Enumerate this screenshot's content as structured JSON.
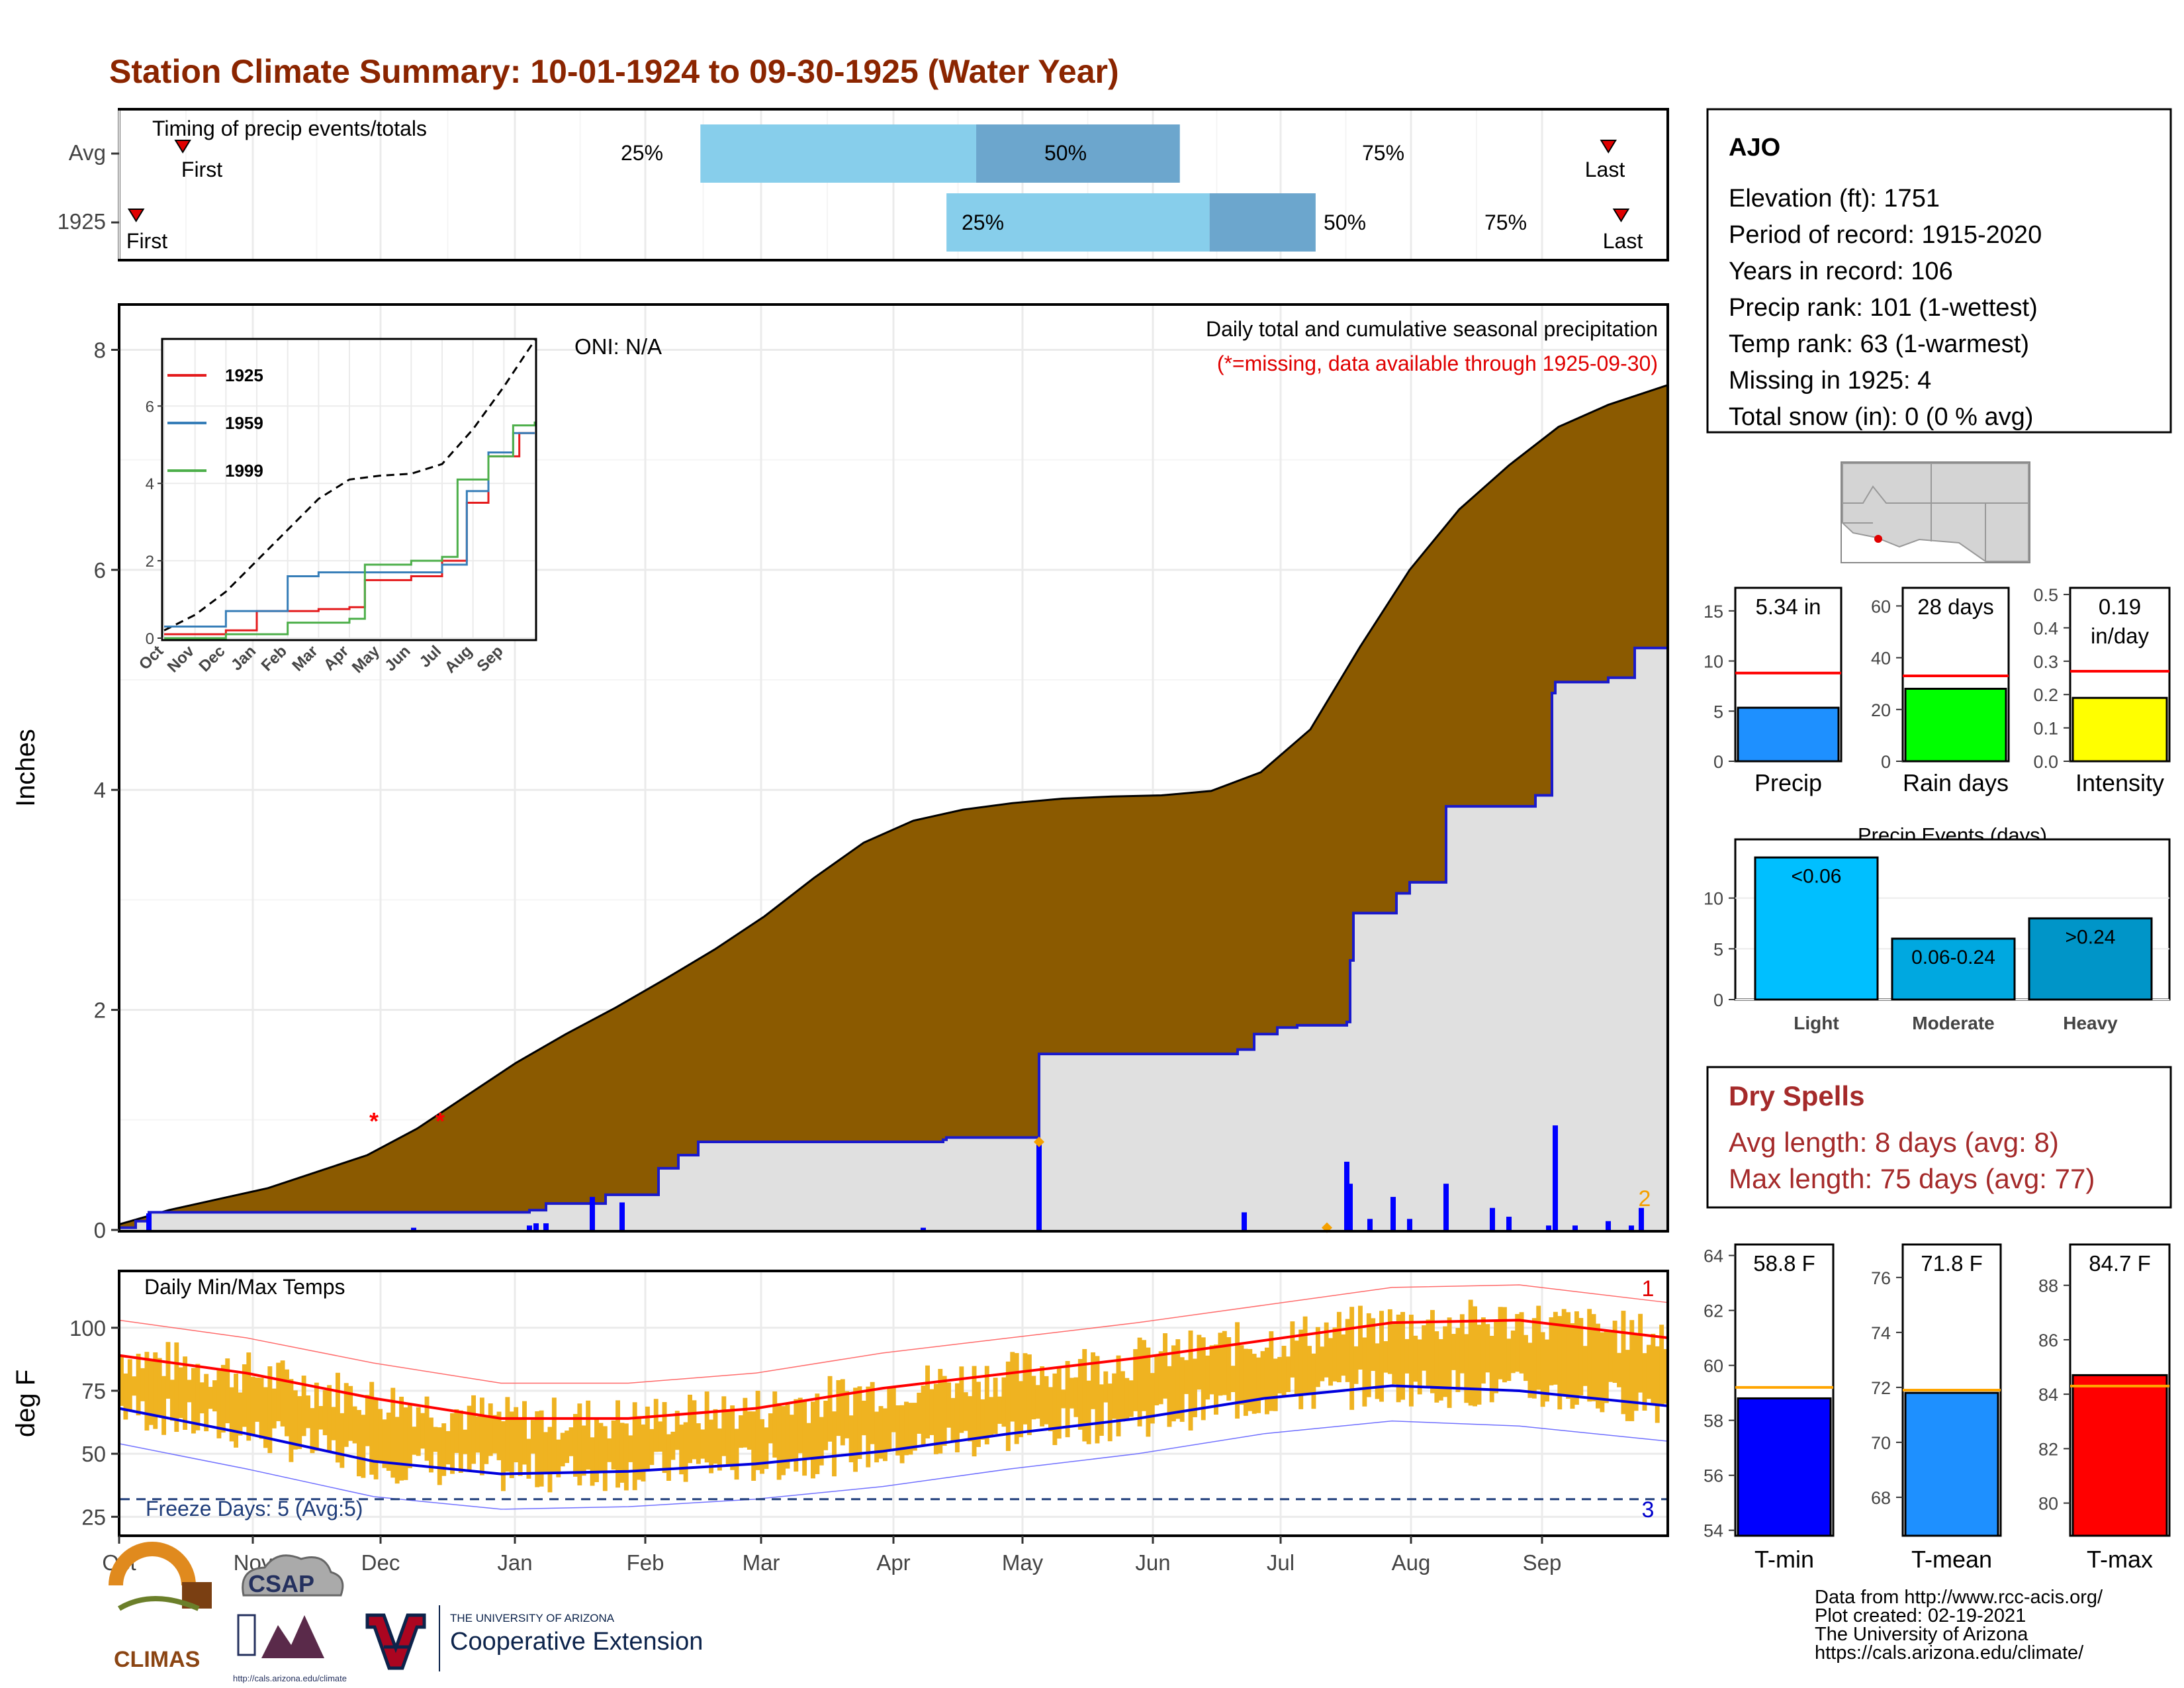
{
  "title": "Station Climate Summary: 10-01-1924 to 09-30-1925 (Water Year)",
  "station": {
    "name": "AJO",
    "lines": [
      "Elevation (ft): 1751",
      "Period of record: 1915-2020",
      "Years in record: 106",
      "Precip rank: 101 (1-wettest)",
      "Temp rank: 63 (1-warmest)",
      "Missing in 1925: 4",
      "Total snow (in): 0 (0 % avg)"
    ]
  },
  "timing": {
    "label": "Timing of precip events/totals",
    "rows": [
      {
        "name": "Avg",
        "first_label": "First",
        "last_label": "Last",
        "p25": "25%",
        "p50": "50%",
        "p75": "75%"
      },
      {
        "name": "1925",
        "first_label": "First",
        "last_label": "Last",
        "p25": "25%",
        "p50": "50%",
        "p75": "75%"
      }
    ]
  },
  "months": [
    "Oct",
    "Nov",
    "Dec",
    "Jan",
    "Feb",
    "Mar",
    "Apr",
    "May",
    "Jun",
    "Jul",
    "Aug",
    "Sep"
  ],
  "precip_panel": {
    "ylabel": "Inches",
    "yticks": [
      "0",
      "2",
      "4",
      "6",
      "8"
    ],
    "title": "Daily total and cumulative seasonal precipitation",
    "note": "(*=missing, data available through 1925-09-30)",
    "oni": "ONI: N/A",
    "annotation_right": "2"
  },
  "inset": {
    "xticks": [
      "Oct",
      "Nov",
      "Dec",
      "Jan",
      "Feb",
      "Mar",
      "Apr",
      "May",
      "Jun",
      "Jul",
      "Aug",
      "Sep"
    ],
    "yticks": [
      "0",
      "2",
      "4",
      "6"
    ],
    "legend": [
      "1925",
      "1959",
      "1999"
    ]
  },
  "temp_panel": {
    "ylabel": "deg F",
    "yticks": [
      "25",
      "50",
      "75",
      "100"
    ],
    "title": "Daily Min/Max Temps",
    "freeze": "Freeze Days: 5 (Avg:5)",
    "count_top": "1",
    "count_bottom": "3"
  },
  "summary_bars": {
    "precip": {
      "value_text": "5.34 in",
      "label": "Precip",
      "yticks": [
        "0",
        "5",
        "10",
        "15"
      ]
    },
    "raindays": {
      "value_text": "28 days",
      "label": "Rain days",
      "yticks": [
        "0",
        "20",
        "40",
        "60"
      ]
    },
    "intensity": {
      "value_text_1": "0.19",
      "value_text_2": "in/day",
      "label": "Intensity",
      "yticks": [
        "0.0",
        "0.1",
        "0.2",
        "0.3",
        "0.4",
        "0.5"
      ]
    }
  },
  "events": {
    "title": "Precip Events (days)",
    "yticks": [
      "0",
      "5",
      "10"
    ],
    "bars": [
      {
        "name": "Light",
        "label": "<0.06",
        "value": 14
      },
      {
        "name": "Moderate",
        "label": "0.06-0.24",
        "value": 6
      },
      {
        "name": "Heavy",
        "label": ">0.24",
        "value": 8
      }
    ]
  },
  "dry_spells": {
    "title": "Dry Spells",
    "avg": "Avg length: 8 days (avg: 8)",
    "max": "Max length: 75 days (avg: 77)"
  },
  "temp_bars": {
    "tmin": {
      "value_text": "58.8 F",
      "label": "T-min",
      "yticks": [
        "54",
        "56",
        "58",
        "60",
        "62",
        "64"
      ]
    },
    "tmean": {
      "value_text": "71.8 F",
      "label": "T-mean",
      "yticks": [
        "68",
        "70",
        "72",
        "74",
        "76"
      ]
    },
    "tmax": {
      "value_text": "84.7 F",
      "label": "T-max",
      "yticks": [
        "80",
        "82",
        "84",
        "86",
        "88"
      ]
    }
  },
  "footer": {
    "lines": [
      "Data from http://www.rcc-acis.org/",
      "Plot created: 02-19-2021",
      "The University of Arizona",
      "https://cals.arizona.edu/climate/"
    ],
    "logo_climas": "CLIMAS",
    "logo_csap": "CSAP",
    "logo_csap_url": "http://cals.arizona.edu/climate",
    "logo_ua_small": "THE UNIVERSITY OF ARIZONA",
    "logo_ua_big": "Cooperative Extension"
  },
  "chart_data": [
    {
      "type": "bar",
      "name": "timing",
      "categories": [
        "Avg",
        "1925"
      ],
      "series": [
        {
          "name": "25%-50%",
          "start": [
            137,
            195
          ],
          "end": [
            202,
            257
          ]
        },
        {
          "name": "50%-75%",
          "start": [
            202,
            257
          ],
          "end": [
            250,
            282
          ]
        },
        {
          "name": "first_day",
          "values": [
            15,
            4
          ]
        },
        {
          "name": "last_day",
          "values": [
            351,
            354
          ]
        }
      ],
      "xlim": [
        0,
        365
      ]
    },
    {
      "type": "area",
      "name": "cumulative precipitation",
      "x_unit": "day of water year",
      "ylabel": "Inches",
      "ylim": [
        0,
        8.4
      ],
      "avg_cumulative": [
        [
          0,
          0.05
        ],
        [
          15,
          0.18
        ],
        [
          30,
          0.28
        ],
        [
          45,
          0.38
        ],
        [
          60,
          0.53
        ],
        [
          75,
          0.68
        ],
        [
          90,
          0.92
        ],
        [
          105,
          1.22
        ],
        [
          120,
          1.52
        ],
        [
          135,
          1.78
        ],
        [
          150,
          2.02
        ],
        [
          165,
          2.28
        ],
        [
          180,
          2.55
        ],
        [
          195,
          2.85
        ],
        [
          210,
          3.2
        ],
        [
          225,
          3.52
        ],
        [
          240,
          3.72
        ],
        [
          255,
          3.82
        ],
        [
          270,
          3.88
        ],
        [
          285,
          3.92
        ],
        [
          300,
          3.94
        ],
        [
          315,
          3.95
        ],
        [
          330,
          3.99
        ],
        [
          345,
          4.16
        ],
        [
          360,
          4.55
        ],
        [
          375,
          5.3
        ],
        [
          390,
          6.0
        ],
        [
          405,
          6.55
        ],
        [
          420,
          6.95
        ],
        [
          435,
          7.3
        ],
        [
          450,
          7.5
        ],
        [
          468,
          7.68
        ]
      ],
      "obs_cumulative": [
        [
          0,
          0.02
        ],
        [
          5,
          0.08
        ],
        [
          9,
          0.16
        ],
        [
          72,
          0.16
        ],
        [
          108,
          0.16
        ],
        [
          124,
          0.18
        ],
        [
          129,
          0.24
        ],
        [
          147,
          0.32
        ],
        [
          163,
          0.56
        ],
        [
          169,
          0.68
        ],
        [
          175,
          0.8
        ],
        [
          249,
          0.82
        ],
        [
          250,
          0.84
        ],
        [
          277,
          0.84
        ],
        [
          278,
          1.6
        ],
        [
          338,
          1.64
        ],
        [
          343,
          1.78
        ],
        [
          350,
          1.84
        ],
        [
          356,
          1.86
        ],
        [
          371,
          1.89
        ],
        [
          372,
          2.45
        ],
        [
          373,
          2.88
        ],
        [
          386,
          3.06
        ],
        [
          390,
          3.16
        ],
        [
          401,
          3.85
        ],
        [
          428,
          3.95
        ],
        [
          433,
          4.88
        ],
        [
          434,
          4.98
        ],
        [
          450,
          5.02
        ],
        [
          458,
          5.29
        ],
        [
          468,
          5.34
        ]
      ],
      "daily_bars": [
        [
          9,
          0.15
        ],
        [
          89,
          0.02
        ],
        [
          124,
          0.04
        ],
        [
          126,
          0.06
        ],
        [
          129,
          0.06
        ],
        [
          143,
          0.3
        ],
        [
          152,
          0.25
        ],
        [
          243,
          0.02
        ],
        [
          278,
          0.8
        ],
        [
          340,
          0.16
        ],
        [
          371,
          0.62
        ],
        [
          372,
          0.42
        ],
        [
          378,
          0.1
        ],
        [
          385,
          0.3
        ],
        [
          390,
          0.1
        ],
        [
          401,
          0.42
        ],
        [
          415,
          0.2
        ],
        [
          420,
          0.12
        ],
        [
          432,
          0.04
        ],
        [
          434,
          0.95
        ],
        [
          440,
          0.04
        ],
        [
          450,
          0.08
        ],
        [
          457,
          0.04
        ],
        [
          460,
          0.2
        ]
      ],
      "missing_days": [
        [
          77,
          1.0
        ],
        [
          97,
          1.0
        ]
      ]
    },
    {
      "type": "line",
      "name": "inset cumulative precipitation",
      "series": [
        {
          "name": "avg",
          "points": [
            [
              0,
              0.2
            ],
            [
              1,
              0.6
            ],
            [
              2,
              1.2
            ],
            [
              3,
              2.0
            ],
            [
              4,
              2.8
            ],
            [
              5,
              3.6
            ],
            [
              6,
              4.1
            ],
            [
              7,
              4.2
            ],
            [
              8,
              4.25
            ],
            [
              9,
              4.5
            ],
            [
              10,
              5.4
            ],
            [
              11,
              6.5
            ],
            [
              12,
              7.7
            ]
          ]
        },
        {
          "name": "1925",
          "points": [
            [
              0,
              0.1
            ],
            [
              2,
              0.2
            ],
            [
              3,
              0.7
            ],
            [
              5,
              0.75
            ],
            [
              6,
              0.8
            ],
            [
              6.5,
              1.5
            ],
            [
              8,
              1.6
            ],
            [
              9,
              2.0
            ],
            [
              9.8,
              3.5
            ],
            [
              10.5,
              4.7
            ],
            [
              11.5,
              5.3
            ],
            [
              12,
              5.3
            ]
          ]
        },
        {
          "name": "1959",
          "points": [
            [
              0,
              0.3
            ],
            [
              2,
              0.7
            ],
            [
              4,
              1.6
            ],
            [
              5,
              1.7
            ],
            [
              7,
              1.7
            ],
            [
              8,
              1.7
            ],
            [
              9,
              1.9
            ],
            [
              9.8,
              3.8
            ],
            [
              10.5,
              4.8
            ],
            [
              11.3,
              5.3
            ],
            [
              12,
              5.3
            ]
          ]
        },
        {
          "name": "1999",
          "points": [
            [
              0,
              0.0
            ],
            [
              2,
              0.1
            ],
            [
              4,
              0.4
            ],
            [
              6,
              0.5
            ],
            [
              6.5,
              1.9
            ],
            [
              8,
              2.0
            ],
            [
              9,
              2.1
            ],
            [
              9.5,
              4.1
            ],
            [
              10.5,
              4.7
            ],
            [
              11.3,
              5.5
            ],
            [
              12,
              5.6
            ]
          ]
        }
      ]
    },
    {
      "type": "area",
      "name": "daily temperatures",
      "ylabel": "deg F",
      "ylim": [
        18,
        122
      ],
      "avg_max": [
        [
          0,
          89
        ],
        [
          30,
          82
        ],
        [
          60,
          72
        ],
        [
          90,
          64
        ],
        [
          120,
          64
        ],
        [
          150,
          68
        ],
        [
          180,
          76
        ],
        [
          210,
          82
        ],
        [
          240,
          88
        ],
        [
          270,
          95
        ],
        [
          300,
          102
        ],
        [
          330,
          103
        ],
        [
          365,
          96
        ]
      ],
      "avg_min": [
        [
          0,
          68
        ],
        [
          30,
          58
        ],
        [
          60,
          47
        ],
        [
          90,
          42
        ],
        [
          120,
          43
        ],
        [
          150,
          46
        ],
        [
          180,
          51
        ],
        [
          210,
          58
        ],
        [
          240,
          64
        ],
        [
          270,
          72
        ],
        [
          300,
          77
        ],
        [
          330,
          75
        ],
        [
          365,
          69
        ]
      ]
    },
    {
      "type": "bar",
      "name": "summary",
      "categories": [
        "Precip",
        "Rain days",
        "Intensity",
        "T-min",
        "T-mean",
        "T-max"
      ],
      "values": [
        5.34,
        28,
        0.19,
        58.8,
        71.8,
        84.7
      ],
      "averages": [
        8.8,
        33,
        0.27,
        59.2,
        71.9,
        84.3
      ]
    }
  ]
}
